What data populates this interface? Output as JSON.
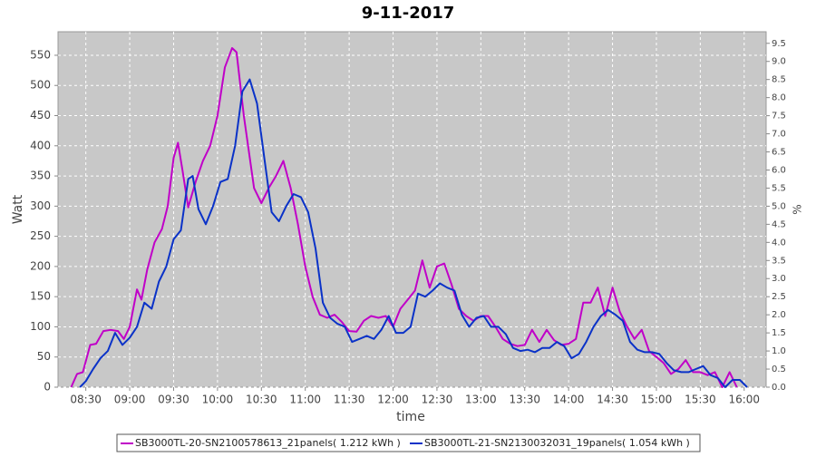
{
  "chart_data": {
    "type": "line",
    "title": "9-11-2017",
    "x_label": "time",
    "y_label": "Watt",
    "y2_label": "%",
    "xlim": [
      "08:11",
      "16:15"
    ],
    "xticks": [
      "08:30",
      "09:00",
      "09:30",
      "10:00",
      "10:30",
      "11:00",
      "11:30",
      "12:00",
      "12:30",
      "13:00",
      "13:30",
      "14:00",
      "14:30",
      "15:00",
      "15:30",
      "16:00"
    ],
    "ylim": [
      0,
      589
    ],
    "yticks": [
      0,
      50,
      100,
      150,
      200,
      250,
      300,
      350,
      400,
      450,
      500,
      550
    ],
    "y2lim": [
      0,
      9.82
    ],
    "y2ticks": [
      {
        "value": 0,
        "label": "0.0"
      },
      0.5,
      {
        "value": 1,
        "label": "1.0"
      },
      1.5,
      {
        "value": 2,
        "label": "2.0"
      },
      2.5,
      {
        "value": 3,
        "label": "3.0"
      },
      3.5,
      {
        "value": 4,
        "label": "4.0"
      },
      4.5,
      {
        "value": 5,
        "label": "5.0"
      },
      5.5,
      {
        "value": 6,
        "label": "6.0"
      },
      6.5,
      {
        "value": 7,
        "label": "7.0"
      },
      7.5,
      {
        "value": 8,
        "label": "8.0"
      },
      8.5,
      {
        "value": 9,
        "label": "9.0"
      },
      9.5
    ],
    "grid": true,
    "legend": "bottom",
    "series": [
      {
        "name": "SB3000TL-20-SN2100578613_21panels( 1.212 kWh )",
        "color": "#c000c8",
        "x": [
          "08:20",
          "08:24",
          "08:28",
          "08:33",
          "08:37",
          "08:42",
          "08:47",
          "08:52",
          "08:56",
          "09:00",
          "09:05",
          "09:08",
          "09:12",
          "09:17",
          "09:22",
          "09:26",
          "09:30",
          "09:33",
          "09:36",
          "09:40",
          "09:45",
          "09:50",
          "09:55",
          "10:00",
          "10:05",
          "10:10",
          "10:13",
          "10:18",
          "10:25",
          "10:30",
          "10:35",
          "10:40",
          "10:45",
          "10:50",
          "10:55",
          "11:00",
          "11:05",
          "11:10",
          "11:15",
          "11:20",
          "11:25",
          "11:30",
          "11:35",
          "11:40",
          "11:45",
          "11:50",
          "11:55",
          "12:00",
          "12:05",
          "12:10",
          "12:15",
          "12:20",
          "12:25",
          "12:30",
          "12:35",
          "12:40",
          "12:45",
          "12:50",
          "12:55",
          "13:00",
          "13:05",
          "13:10",
          "13:15",
          "13:20",
          "13:25",
          "13:30",
          "13:35",
          "13:40",
          "13:45",
          "13:50",
          "13:55",
          "14:00",
          "14:05",
          "14:10",
          "14:15",
          "14:20",
          "14:25",
          "14:30",
          "14:35",
          "14:40",
          "14:45",
          "14:50",
          "14:55",
          "15:00",
          "15:05",
          "15:10",
          "15:15",
          "15:20",
          "15:25",
          "15:30",
          "15:35",
          "15:40",
          "15:45",
          "15:50",
          "15:55"
        ],
        "values": [
          0,
          22,
          25,
          70,
          72,
          93,
          95,
          93,
          80,
          100,
          162,
          145,
          195,
          240,
          262,
          300,
          380,
          405,
          360,
          298,
          340,
          375,
          400,
          450,
          530,
          562,
          555,
          450,
          330,
          305,
          330,
          350,
          375,
          330,
          270,
          200,
          150,
          120,
          115,
          120,
          108,
          93,
          92,
          110,
          118,
          115,
          118,
          100,
          130,
          145,
          160,
          210,
          165,
          200,
          205,
          170,
          130,
          118,
          110,
          118,
          118,
          100,
          80,
          72,
          68,
          70,
          95,
          75,
          95,
          78,
          70,
          72,
          80,
          140,
          140,
          165,
          118,
          165,
          125,
          100,
          80,
          95,
          60,
          50,
          40,
          22,
          30,
          45,
          25,
          25,
          20,
          25,
          0,
          25,
          0
        ]
      },
      {
        "name": "SB3000TL-21-SN2130032031_19panels( 1.054 kWh )",
        "color": "#0a32c8",
        "x": [
          "08:26",
          "08:30",
          "08:35",
          "08:40",
          "08:45",
          "08:50",
          "08:55",
          "09:00",
          "09:05",
          "09:10",
          "09:15",
          "09:20",
          "09:25",
          "09:30",
          "09:35",
          "09:40",
          "09:43",
          "09:47",
          "09:52",
          "09:57",
          "10:02",
          "10:07",
          "10:12",
          "10:17",
          "10:22",
          "10:27",
          "10:32",
          "10:37",
          "10:42",
          "10:47",
          "10:52",
          "10:57",
          "11:02",
          "11:07",
          "11:12",
          "11:17",
          "11:22",
          "11:27",
          "11:32",
          "11:37",
          "11:42",
          "11:47",
          "11:52",
          "11:57",
          "12:02",
          "12:07",
          "12:12",
          "12:17",
          "12:22",
          "12:27",
          "12:32",
          "12:37",
          "12:42",
          "12:47",
          "12:52",
          "12:57",
          "13:02",
          "13:07",
          "13:12",
          "13:17",
          "13:22",
          "13:27",
          "13:32",
          "13:37",
          "13:42",
          "13:47",
          "13:52",
          "13:57",
          "14:02",
          "14:07",
          "14:12",
          "14:17",
          "14:22",
          "14:27",
          "14:32",
          "14:37",
          "14:42",
          "14:47",
          "14:52",
          "14:57",
          "15:02",
          "15:07",
          "15:12",
          "15:17",
          "15:22",
          "15:27",
          "15:32",
          "15:37",
          "15:42",
          "15:47",
          "15:52",
          "15:57",
          "16:02"
        ],
        "values": [
          0,
          10,
          30,
          48,
          60,
          90,
          70,
          82,
          100,
          140,
          130,
          175,
          200,
          245,
          260,
          345,
          350,
          295,
          270,
          300,
          340,
          345,
          400,
          490,
          510,
          470,
          380,
          290,
          275,
          300,
          320,
          315,
          290,
          230,
          140,
          115,
          105,
          100,
          75,
          80,
          85,
          80,
          95,
          118,
          90,
          90,
          100,
          155,
          150,
          160,
          172,
          165,
          160,
          120,
          100,
          115,
          118,
          100,
          100,
          88,
          65,
          60,
          62,
          58,
          65,
          65,
          75,
          68,
          48,
          55,
          75,
          100,
          118,
          128,
          120,
          110,
          75,
          62,
          58,
          58,
          55,
          40,
          28,
          25,
          25,
          30,
          35,
          20,
          15,
          0,
          12,
          12,
          0
        ]
      }
    ]
  }
}
